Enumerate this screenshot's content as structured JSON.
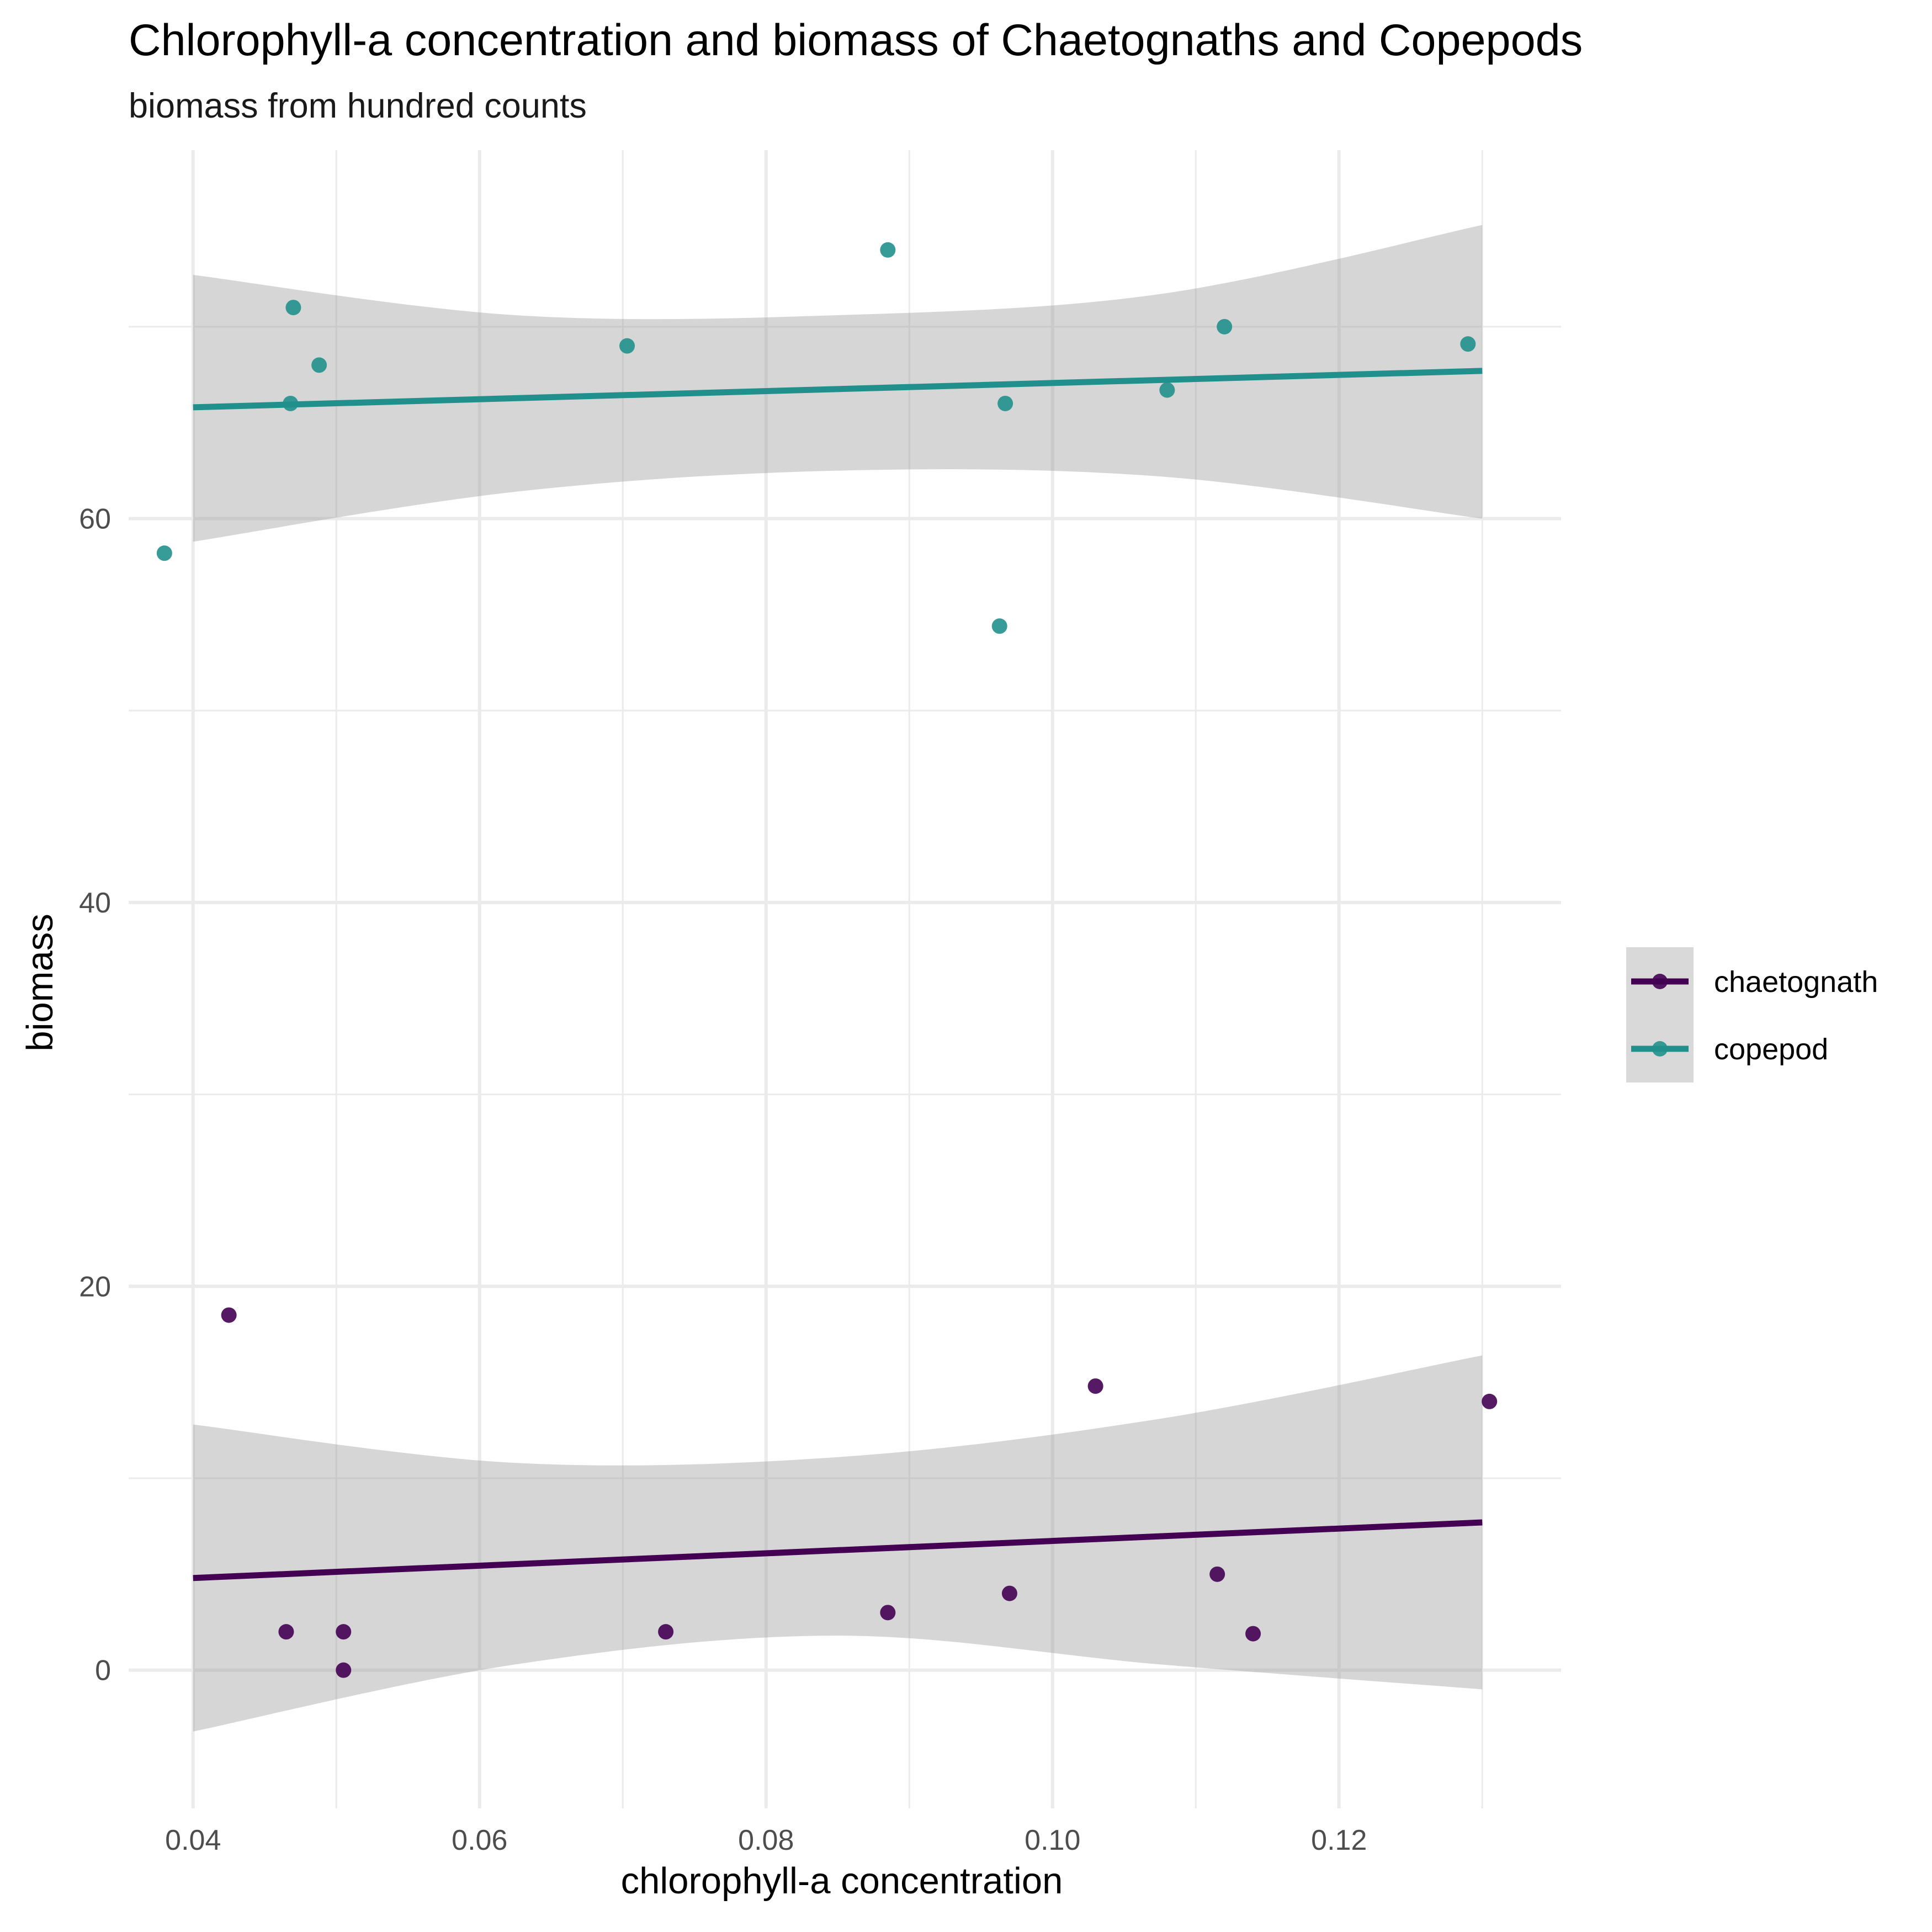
{
  "chart_data": {
    "type": "scatter",
    "title": "Chlorophyll-a concentration and biomass of Chaetognaths and Copepods",
    "subtitle": "biomass from hundred counts",
    "xlabel": "chlorophyll-a concentration",
    "ylabel": "biomass",
    "xlim": [
      0.0355,
      0.1355
    ],
    "ylim": [
      -7.2,
      79.2
    ],
    "x_ticks": [
      0.04,
      0.06,
      0.08,
      0.1,
      0.12
    ],
    "x_tick_labels": [
      "0.04",
      "0.06",
      "0.08",
      "0.10",
      "0.12"
    ],
    "y_ticks": [
      0,
      20,
      40,
      60
    ],
    "y_tick_labels": [
      "0",
      "20",
      "40",
      "60"
    ],
    "grid": true,
    "legend_position": "right",
    "series": [
      {
        "name": "chaetognath",
        "color": "#440154",
        "points": [
          {
            "x": 0.0425,
            "y": 18.5
          },
          {
            "x": 0.0465,
            "y": 2
          },
          {
            "x": 0.0505,
            "y": 2
          },
          {
            "x": 0.0505,
            "y": 0
          },
          {
            "x": 0.073,
            "y": 2
          },
          {
            "x": 0.0885,
            "y": 3
          },
          {
            "x": 0.097,
            "y": 4
          },
          {
            "x": 0.103,
            "y": 14.8
          },
          {
            "x": 0.1115,
            "y": 5
          },
          {
            "x": 0.114,
            "y": 1.9
          },
          {
            "x": 0.1305,
            "y": 14
          }
        ],
        "fit": {
          "x": [
            0.04,
            0.13
          ],
          "y": [
            4.8,
            7.7
          ]
        },
        "ci_band": {
          "x": [
            0.04,
            0.0625,
            0.085,
            0.1075,
            0.13
          ],
          "lower": [
            -3.2,
            0.3,
            1.8,
            0.3,
            -1.0
          ],
          "upper": [
            12.8,
            10.8,
            11.1,
            13.1,
            16.4
          ]
        }
      },
      {
        "name": "copepod",
        "color": "#21908C",
        "points": [
          {
            "x": 0.038,
            "y": 58.2
          },
          {
            "x": 0.047,
            "y": 71
          },
          {
            "x": 0.0468,
            "y": 66
          },
          {
            "x": 0.0488,
            "y": 68
          },
          {
            "x": 0.0703,
            "y": 69
          },
          {
            "x": 0.0885,
            "y": 74
          },
          {
            "x": 0.0967,
            "y": 66
          },
          {
            "x": 0.0963,
            "y": 54.4
          },
          {
            "x": 0.108,
            "y": 66.7
          },
          {
            "x": 0.112,
            "y": 70
          },
          {
            "x": 0.129,
            "y": 69.1
          }
        ],
        "fit": {
          "x": [
            0.04,
            0.13
          ],
          "y": [
            65.8,
            67.7
          ]
        },
        "ci_band": {
          "x": [
            0.04,
            0.0625,
            0.085,
            0.1075,
            0.13
          ],
          "lower": [
            58.8,
            61.4,
            62.5,
            62.2,
            60.0
          ],
          "upper": [
            72.7,
            70.6,
            70.6,
            71.7,
            75.3
          ]
        }
      }
    ]
  }
}
